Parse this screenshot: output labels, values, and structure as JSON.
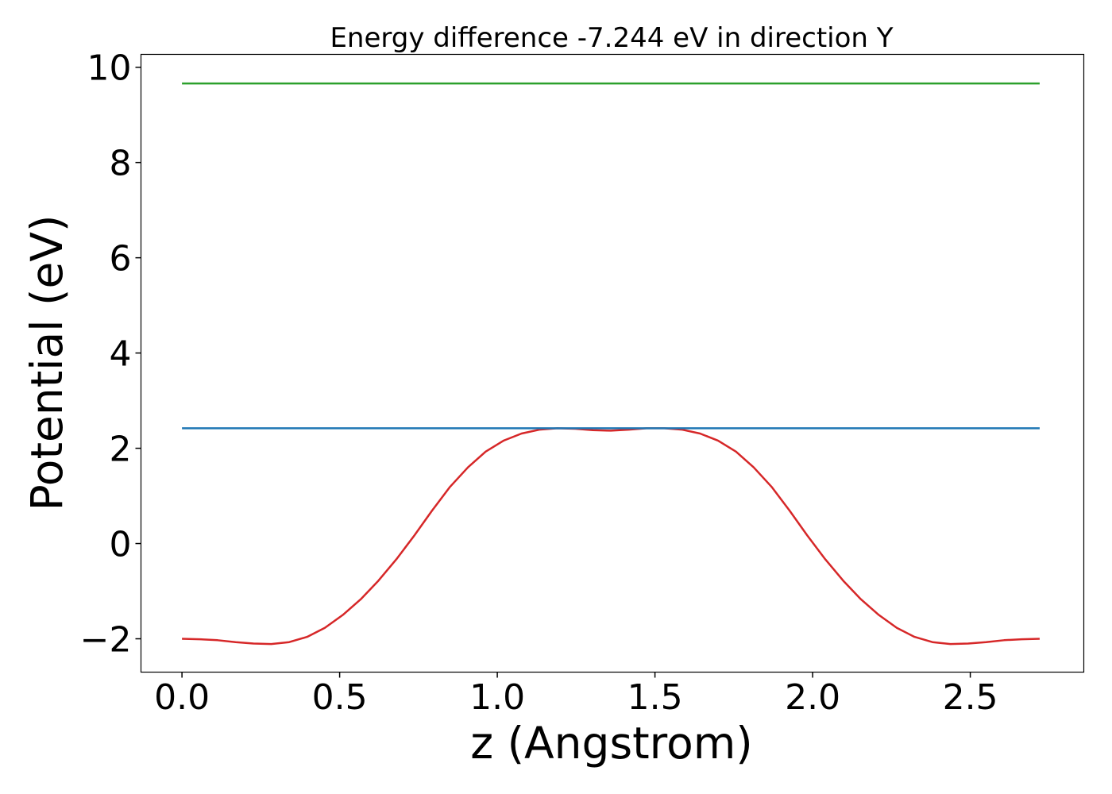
{
  "chart_data": {
    "type": "line",
    "title": "Energy difference -7.244 eV in direction Y",
    "xlabel": "z (Angstrom)",
    "ylabel": "Potential (eV)",
    "xlim": [
      -0.13,
      2.86
    ],
    "ylim": [
      -2.7,
      10.27
    ],
    "xticks": [
      0.0,
      0.5,
      1.0,
      1.5,
      2.0,
      2.5
    ],
    "xtick_labels": [
      "0.0",
      "0.5",
      "1.0",
      "1.5",
      "2.0",
      "2.5"
    ],
    "yticks": [
      -2,
      0,
      2,
      4,
      6,
      8,
      10
    ],
    "ytick_labels": [
      "−2",
      "0",
      "2",
      "4",
      "6",
      "8",
      "10"
    ],
    "grid": false,
    "legend": "none",
    "series": [
      {
        "color": "#d62728",
        "x": [
          0.0,
          0.057,
          0.113,
          0.17,
          0.227,
          0.283,
          0.34,
          0.397,
          0.453,
          0.51,
          0.567,
          0.623,
          0.68,
          0.737,
          0.793,
          0.85,
          0.907,
          0.963,
          1.02,
          1.077,
          1.133,
          1.19,
          1.247,
          1.303,
          1.36,
          1.417,
          1.473,
          1.53,
          1.587,
          1.643,
          1.7,
          1.757,
          1.813,
          1.87,
          1.927,
          1.983,
          2.04,
          2.097,
          2.153,
          2.21,
          2.267,
          2.323,
          2.38,
          2.437,
          2.493,
          2.55,
          2.607,
          2.663,
          2.72
        ],
        "y": [
          -2.0,
          -2.01,
          -2.03,
          -2.07,
          -2.1,
          -2.11,
          -2.07,
          -1.96,
          -1.77,
          -1.5,
          -1.17,
          -0.78,
          -0.33,
          0.17,
          0.69,
          1.19,
          1.6,
          1.93,
          2.16,
          2.31,
          2.39,
          2.42,
          2.41,
          2.38,
          2.37,
          2.39,
          2.42,
          2.42,
          2.39,
          2.31,
          2.16,
          1.93,
          1.6,
          1.19,
          0.69,
          0.17,
          -0.33,
          -0.78,
          -1.17,
          -1.5,
          -1.77,
          -1.96,
          -2.07,
          -2.11,
          -2.1,
          -2.07,
          -2.03,
          -2.01,
          -2.0
        ]
      },
      {
        "color": "#1f77b4",
        "x": [
          0.0,
          2.72
        ],
        "y": [
          2.42,
          2.42
        ]
      },
      {
        "color": "#2ca02c",
        "x": [
          0.0,
          2.72
        ],
        "y": [
          9.66,
          9.66
        ]
      }
    ]
  }
}
